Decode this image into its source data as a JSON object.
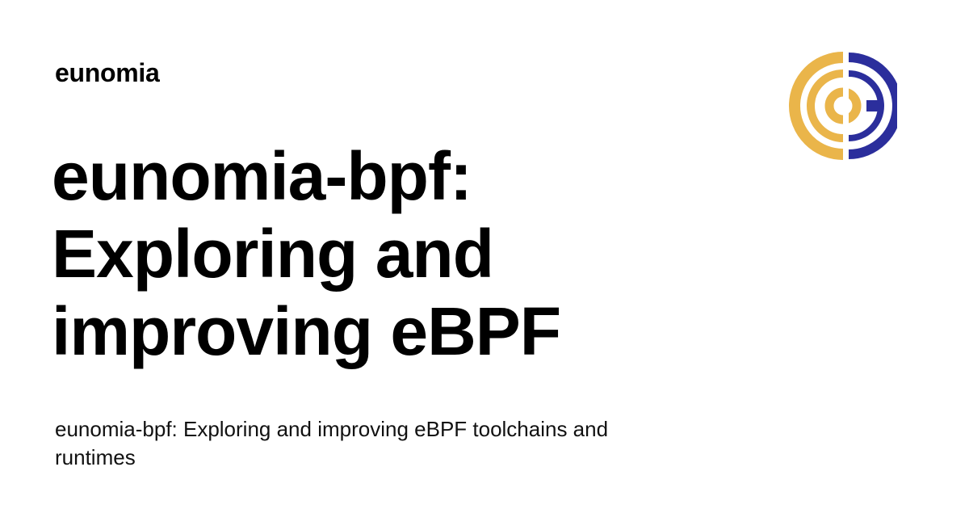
{
  "site": {
    "name": "eunomia"
  },
  "article": {
    "title": "eunomia-bpf: Exploring and improving eBPF",
    "description": "eunomia-bpf: Exploring and improving eBPF toolchains and runtimes"
  },
  "logo": {
    "icon": "eunomia-logo-icon",
    "colors": {
      "left": "#EAB54A",
      "right": "#2B2E9C"
    }
  }
}
